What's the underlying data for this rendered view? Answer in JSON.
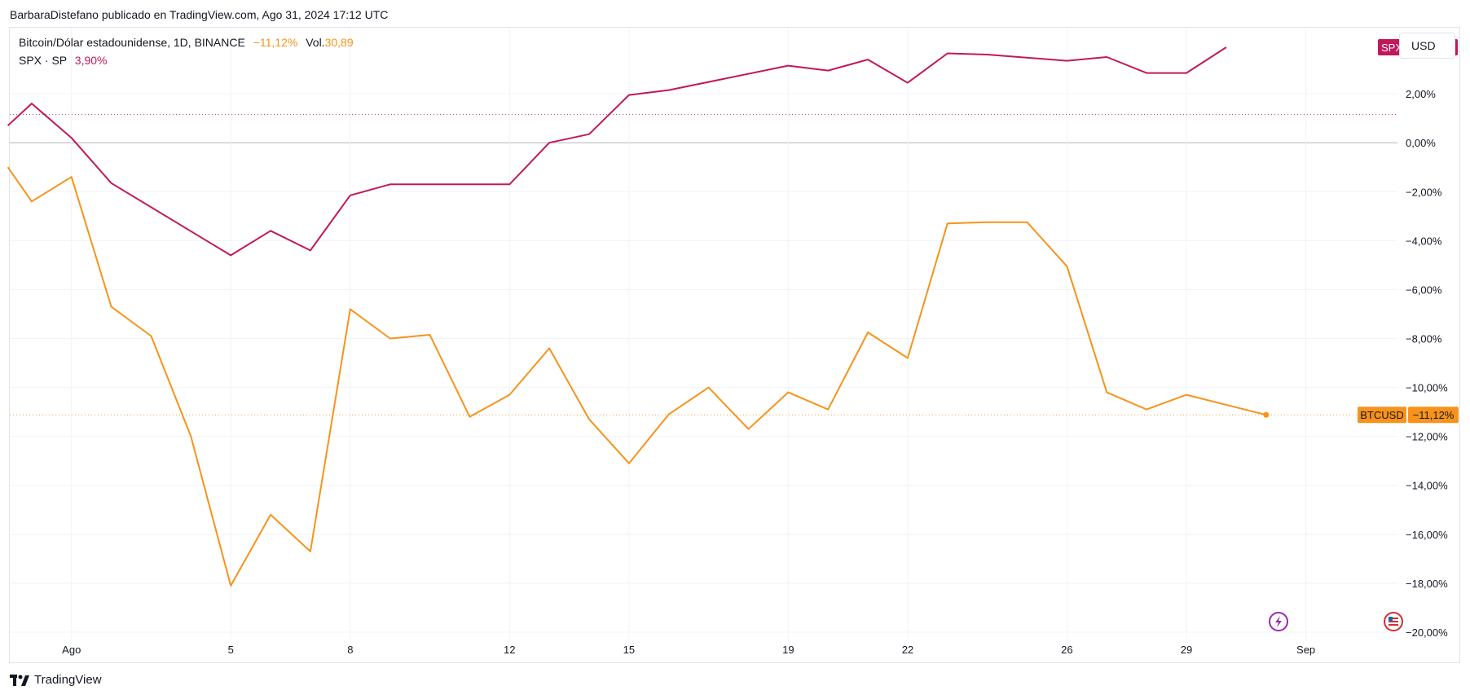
{
  "header": {
    "publish_line": "BarbaraDistefano publicado en TradingView.com, Ago 31, 2024 17:12 UTC"
  },
  "legend": {
    "btc": {
      "name": "Bitcoin/Dólar estadounidense, 1D, BINANCE",
      "change": "−11,12%",
      "vol_label": "Vol.",
      "vol_value": "30,89"
    },
    "spx": {
      "name": "SPX · SP",
      "change": "3,90%"
    }
  },
  "currency_button": "USD",
  "footer": {
    "brand": "TradingView"
  },
  "colors": {
    "spx": "#c2185b",
    "btc": "#f7931a",
    "grid": "#f0f3fa",
    "zero_line": "#b2b5be",
    "axis_text": "#131722"
  },
  "icons": [
    "tradingview-logo-icon",
    "lightning-event-icon",
    "flag-event-icon"
  ],
  "chart_data": {
    "type": "line",
    "x_unit": "day",
    "x_tick_labels": [
      {
        "day": 1,
        "label": "Ago"
      },
      {
        "day": 5,
        "label": "5"
      },
      {
        "day": 8,
        "label": "8"
      },
      {
        "day": 12,
        "label": "12"
      },
      {
        "day": 15,
        "label": "15"
      },
      {
        "day": 19,
        "label": "19"
      },
      {
        "day": 22,
        "label": "22"
      },
      {
        "day": 26,
        "label": "26"
      },
      {
        "day": 29,
        "label": "29"
      },
      {
        "day": 32,
        "label": "Sep"
      }
    ],
    "xlim": [
      -0.55,
      34.3
    ],
    "ylim": [
      -20.3,
      4.7
    ],
    "y_ticks": [
      {
        "value": 2,
        "label": "2,00%"
      },
      {
        "value": 0,
        "label": "0,00%"
      },
      {
        "value": -2,
        "label": "−2,00%"
      },
      {
        "value": -4,
        "label": "−4,00%"
      },
      {
        "value": -6,
        "label": "−6,00%"
      },
      {
        "value": -8,
        "label": "−8,00%"
      },
      {
        "value": -10,
        "label": "−10,00%"
      },
      {
        "value": -12,
        "label": "−12,00%"
      },
      {
        "value": -14,
        "label": "−14,00%"
      },
      {
        "value": -16,
        "label": "−16,00%"
      },
      {
        "value": -18,
        "label": "−18,00%"
      },
      {
        "value": -20,
        "label": "−20,00%"
      }
    ],
    "grid": true,
    "series": [
      {
        "name": "SPX",
        "color": "#c2185b",
        "points": [
          [
            -0.6,
            0.7
          ],
          [
            0,
            1.6
          ],
          [
            1,
            0.2
          ],
          [
            2,
            -1.65
          ],
          [
            5,
            -4.6
          ],
          [
            6,
            -3.6
          ],
          [
            7,
            -4.4
          ],
          [
            8,
            -2.15
          ],
          [
            9,
            -1.7
          ],
          [
            12,
            -1.7
          ],
          [
            13,
            0.0
          ],
          [
            14,
            0.35
          ],
          [
            15,
            1.95
          ],
          [
            16,
            2.15
          ],
          [
            19,
            3.15
          ],
          [
            20,
            2.95
          ],
          [
            21,
            3.4
          ],
          [
            22,
            2.45
          ],
          [
            23,
            3.65
          ],
          [
            24,
            3.6
          ],
          [
            26,
            3.35
          ],
          [
            27,
            3.5
          ],
          [
            28,
            2.85
          ],
          [
            29,
            2.85
          ],
          [
            30,
            3.9
          ]
        ],
        "label": "SPX",
        "value_label": "+3,90%",
        "last_value": 3.9,
        "reference_line": 1.15
      },
      {
        "name": "BTCUSD",
        "color": "#f7931a",
        "points": [
          [
            -0.6,
            -1.0
          ],
          [
            0,
            -2.4
          ],
          [
            1,
            -1.4
          ],
          [
            2,
            -6.7
          ],
          [
            3,
            -7.9
          ],
          [
            4,
            -12.0
          ],
          [
            5,
            -18.1
          ],
          [
            6,
            -15.2
          ],
          [
            7,
            -16.7
          ],
          [
            8,
            -6.8
          ],
          [
            9,
            -8.0
          ],
          [
            10,
            -7.85
          ],
          [
            11,
            -11.2
          ],
          [
            12,
            -10.3
          ],
          [
            13,
            -8.4
          ],
          [
            14,
            -11.3
          ],
          [
            15,
            -13.1
          ],
          [
            16,
            -11.1
          ],
          [
            17,
            -10.0
          ],
          [
            18,
            -11.7
          ],
          [
            19,
            -10.2
          ],
          [
            20,
            -10.9
          ],
          [
            21,
            -7.75
          ],
          [
            22,
            -8.8
          ],
          [
            23,
            -3.3
          ],
          [
            24,
            -3.25
          ],
          [
            25,
            -3.25
          ],
          [
            26,
            -5.05
          ],
          [
            27,
            -10.2
          ],
          [
            28,
            -10.9
          ],
          [
            29,
            -10.3
          ],
          [
            31,
            -11.12
          ]
        ],
        "label": "BTCUSD",
        "value_label": "−11,12%",
        "last_value": -11.12,
        "reference_line": -11.12
      }
    ]
  }
}
